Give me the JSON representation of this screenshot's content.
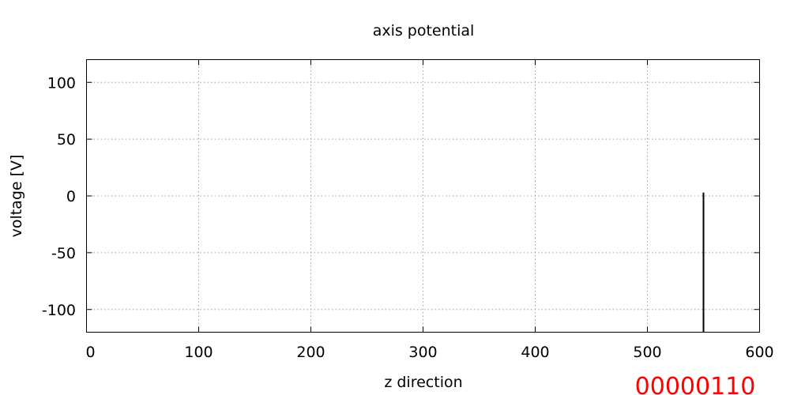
{
  "chart_data": {
    "type": "line",
    "title": "axis potential",
    "xlabel": "z direction",
    "ylabel": "voltage [V]",
    "xlim": [
      0,
      600
    ],
    "ylim": [
      -120,
      120
    ],
    "x_ticks": [
      0,
      100,
      200,
      300,
      400,
      500,
      600
    ],
    "y_ticks": [
      100,
      50,
      0,
      -50,
      -100
    ],
    "x_tick_labels": [
      "0",
      "100",
      "200",
      "300",
      "400",
      "500",
      "600"
    ],
    "y_tick_labels": [
      "100",
      "50",
      "0",
      "-50",
      "-100"
    ],
    "grid": true,
    "series": [
      {
        "color": "#000000",
        "x": [
          550,
          550
        ],
        "y": [
          -120,
          3
        ]
      }
    ]
  },
  "frame_counter": {
    "text": "00000110",
    "color": "#ff0000"
  }
}
